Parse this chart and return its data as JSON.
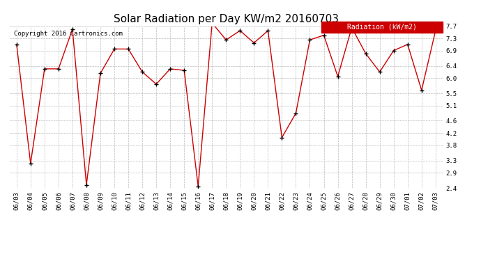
{
  "title": "Solar Radiation per Day KW/m2 20160703",
  "copyright_text": "Copyright 2016 Cartronics.com",
  "legend_label": "Radiation (kW/m2)",
  "dates": [
    "06/03",
    "06/04",
    "06/05",
    "06/06",
    "06/07",
    "06/08",
    "06/09",
    "06/10",
    "06/11",
    "06/12",
    "06/13",
    "06/14",
    "06/15",
    "06/16",
    "06/17",
    "06/18",
    "06/19",
    "06/20",
    "06/21",
    "06/22",
    "06/23",
    "06/24",
    "06/25",
    "06/26",
    "06/27",
    "06/28",
    "06/29",
    "06/30",
    "07/01",
    "07/02",
    "07/03"
  ],
  "values": [
    7.1,
    3.2,
    6.3,
    6.3,
    7.6,
    2.5,
    6.15,
    6.95,
    6.95,
    6.2,
    5.8,
    6.3,
    6.25,
    2.45,
    7.8,
    7.25,
    7.55,
    7.15,
    7.55,
    4.05,
    4.85,
    7.25,
    7.4,
    6.05,
    7.65,
    6.8,
    6.2,
    6.9,
    7.1,
    5.6,
    7.55
  ],
  "line_color": "#cc0000",
  "marker": "+",
  "marker_color": "#000000",
  "background_color": "#ffffff",
  "grid_color": "#bbbbbb",
  "ylim": [
    2.4,
    7.7
  ],
  "yticks": [
    2.4,
    2.9,
    3.3,
    3.8,
    4.2,
    4.6,
    5.1,
    5.5,
    6.0,
    6.4,
    6.9,
    7.3,
    7.7
  ],
  "title_fontsize": 11,
  "axis_fontsize": 6.5,
  "copyright_fontsize": 6.5,
  "legend_bg": "#cc0000",
  "legend_text_color": "#ffffff",
  "legend_fontsize": 7
}
